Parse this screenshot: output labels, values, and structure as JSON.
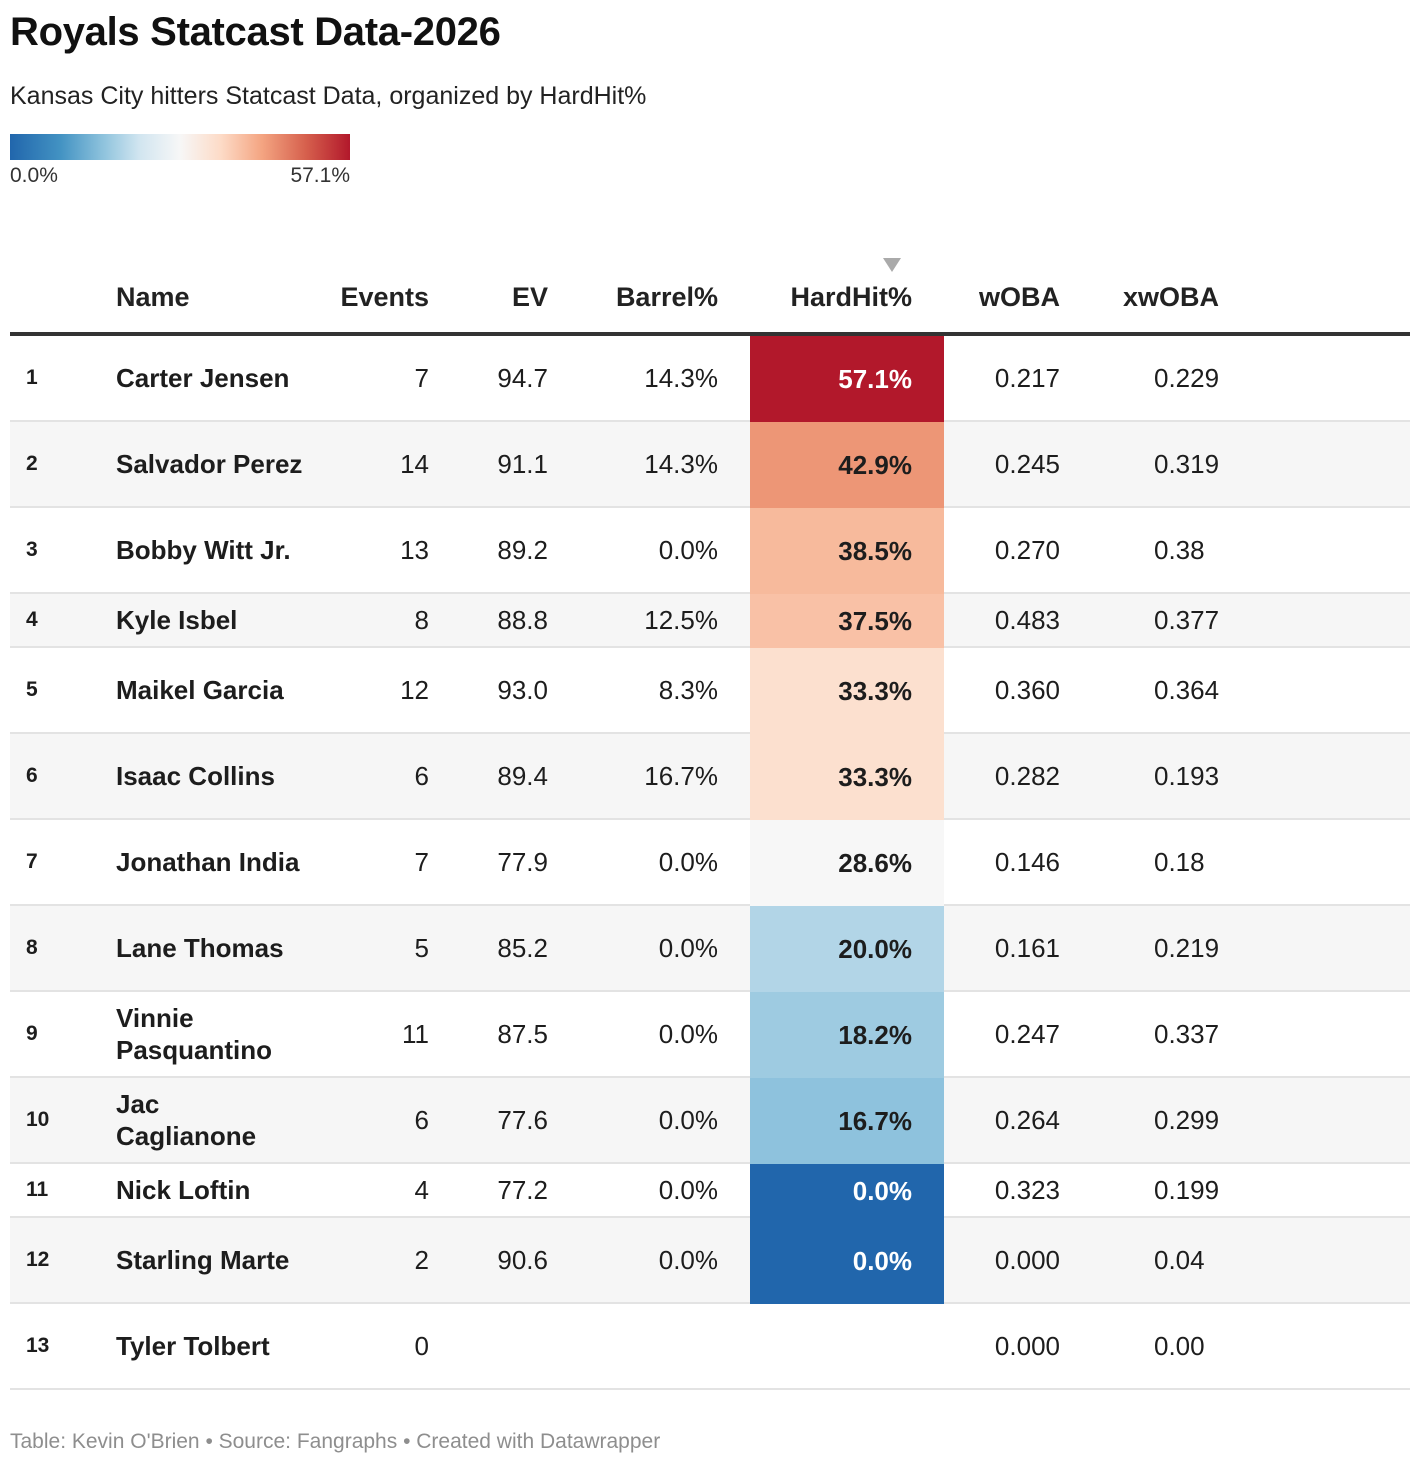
{
  "title": "Royals Statcast Data-2026",
  "subtitle": "Kansas City hitters Statcast Data, organized by HardHit%",
  "legend": {
    "min_label": "0.0%",
    "max_label": "57.1%",
    "min": 0,
    "max": 57.1
  },
  "footer": "Table: Kevin O'Brien • Source: Fangraphs • Created with Datawrapper",
  "chart_data": {
    "type": "table",
    "sorted_by": "HardHit%",
    "sort_direction": "descending",
    "color_scale": {
      "column": "HardHit%",
      "min": 0,
      "max": 57.1,
      "low_color": "#2166ac",
      "mid_color": "#f7f7f7",
      "high_color": "#b2182b"
    },
    "columns": [
      "Name",
      "Events",
      "EV",
      "Barrel%",
      "HardHit%",
      "wOBA",
      "xwOBA"
    ],
    "rows": [
      {
        "rank": "1",
        "name": "Carter Jensen",
        "events": "7",
        "ev": "94.7",
        "barrel": "14.3%",
        "hardhit": "57.1%",
        "hardhit_value": 57.1,
        "woba": "0.217",
        "xwoba": "0.229"
      },
      {
        "rank": "2",
        "name": "Salvador Perez",
        "events": "14",
        "ev": "91.1",
        "barrel": "14.3%",
        "hardhit": "42.9%",
        "hardhit_value": 42.9,
        "woba": "0.245",
        "xwoba": "0.319"
      },
      {
        "rank": "3",
        "name": "Bobby Witt Jr.",
        "events": "13",
        "ev": "89.2",
        "barrel": "0.0%",
        "hardhit": "38.5%",
        "hardhit_value": 38.5,
        "woba": "0.270",
        "xwoba": "0.38"
      },
      {
        "rank": "4",
        "name": "Kyle Isbel",
        "events": "8",
        "ev": "88.8",
        "barrel": "12.5%",
        "hardhit": "37.5%",
        "hardhit_value": 37.5,
        "woba": "0.483",
        "xwoba": "0.377"
      },
      {
        "rank": "5",
        "name": "Maikel Garcia",
        "events": "12",
        "ev": "93.0",
        "barrel": "8.3%",
        "hardhit": "33.3%",
        "hardhit_value": 33.3,
        "woba": "0.360",
        "xwoba": "0.364"
      },
      {
        "rank": "6",
        "name": "Isaac Collins",
        "events": "6",
        "ev": "89.4",
        "barrel": "16.7%",
        "hardhit": "33.3%",
        "hardhit_value": 33.3,
        "woba": "0.282",
        "xwoba": "0.193"
      },
      {
        "rank": "7",
        "name": "Jonathan India",
        "events": "7",
        "ev": "77.9",
        "barrel": "0.0%",
        "hardhit": "28.6%",
        "hardhit_value": 28.6,
        "woba": "0.146",
        "xwoba": "0.18"
      },
      {
        "rank": "8",
        "name": "Lane Thomas",
        "events": "5",
        "ev": "85.2",
        "barrel": "0.0%",
        "hardhit": "20.0%",
        "hardhit_value": 20.0,
        "woba": "0.161",
        "xwoba": "0.219"
      },
      {
        "rank": "9",
        "name": "Vinnie Pasquantino",
        "events": "11",
        "ev": "87.5",
        "barrel": "0.0%",
        "hardhit": "18.2%",
        "hardhit_value": 18.2,
        "woba": "0.247",
        "xwoba": "0.337"
      },
      {
        "rank": "10",
        "name": "Jac Caglianone",
        "events": "6",
        "ev": "77.6",
        "barrel": "0.0%",
        "hardhit": "16.7%",
        "hardhit_value": 16.7,
        "woba": "0.264",
        "xwoba": "0.299"
      },
      {
        "rank": "11",
        "name": "Nick Loftin",
        "events": "4",
        "ev": "77.2",
        "barrel": "0.0%",
        "hardhit": "0.0%",
        "hardhit_value": 0.0,
        "woba": "0.323",
        "xwoba": "0.199"
      },
      {
        "rank": "12",
        "name": "Starling Marte",
        "events": "2",
        "ev": "90.6",
        "barrel": "0.0%",
        "hardhit": "0.0%",
        "hardhit_value": 0.0,
        "woba": "0.000",
        "xwoba": "0.04"
      },
      {
        "rank": "13",
        "name": "Tyler Tolbert",
        "events": "0",
        "ev": "",
        "barrel": "",
        "hardhit": "",
        "hardhit_value": null,
        "woba": "0.000",
        "xwoba": "0.00"
      }
    ]
  }
}
